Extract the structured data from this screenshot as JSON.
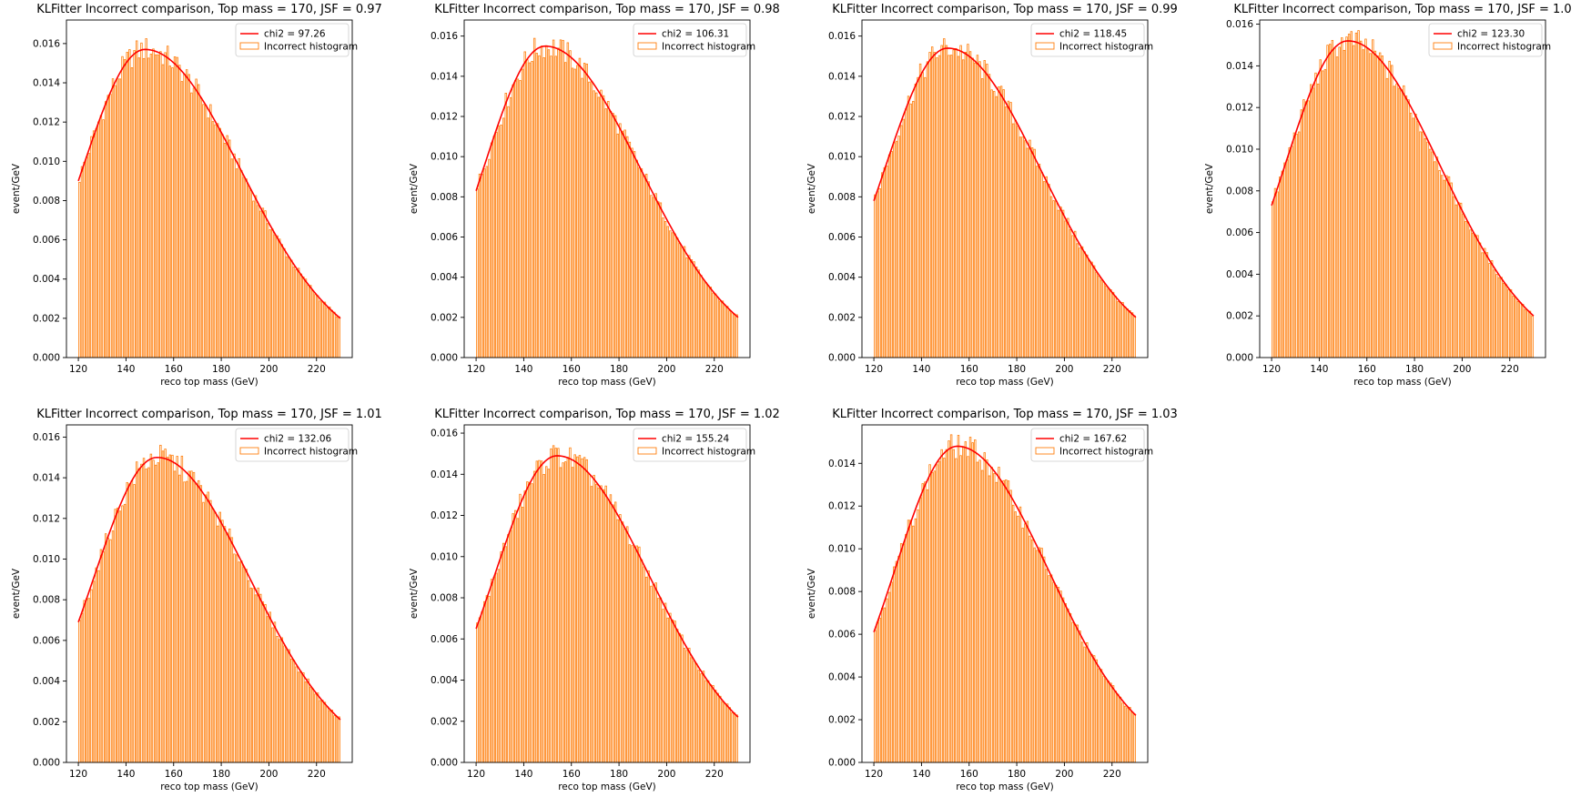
{
  "figure": {
    "hist_color": "#ff7f0e",
    "fit_color": "#ff0000",
    "legend_position": "upper right",
    "layout": "2 rows x 4 columns, 7 panels"
  },
  "chart_data": [
    {
      "type": "bar",
      "title": "KLFitter Incorrect comparison, Top mass = 170, JSF = 0.97",
      "xlabel": "reco top mass (GeV)",
      "ylabel": "event/GeV",
      "xlim": [
        115,
        235
      ],
      "ylim": [
        0,
        0.0172
      ],
      "xticks": [
        120,
        140,
        160,
        180,
        200,
        220
      ],
      "xtick_labels": [
        "120",
        "140",
        "160",
        "180",
        "200",
        "220"
      ],
      "yticks": [
        0,
        0.002,
        0.004,
        0.006,
        0.008,
        0.01,
        0.012,
        0.014,
        0.016
      ],
      "ytick_labels": [
        "0.000",
        "0.002",
        "0.004",
        "0.006",
        "0.008",
        "0.010",
        "0.012",
        "0.014",
        "0.016"
      ],
      "bin_edges": [
        120,
        230
      ],
      "n_bins": 110,
      "fit_label": "chi2 = 97.26",
      "hist_label": "Incorrect histogram",
      "peak": 148,
      "peak_value": 0.0157,
      "start_value": 0.009,
      "end_value": 0.002
    },
    {
      "type": "bar",
      "title": "KLFitter Incorrect comparison, Top mass = 170, JSF = 0.98",
      "xlabel": "reco top mass (GeV)",
      "ylabel": "event/GeV",
      "xlim": [
        115,
        235
      ],
      "ylim": [
        0,
        0.0168
      ],
      "xticks": [
        120,
        140,
        160,
        180,
        200,
        220
      ],
      "xtick_labels": [
        "120",
        "140",
        "160",
        "180",
        "200",
        "220"
      ],
      "yticks": [
        0,
        0.002,
        0.004,
        0.006,
        0.008,
        0.01,
        0.012,
        0.014,
        0.016
      ],
      "ytick_labels": [
        "0.000",
        "0.002",
        "0.004",
        "0.006",
        "0.008",
        "0.010",
        "0.012",
        "0.014",
        "0.016"
      ],
      "bin_edges": [
        120,
        230
      ],
      "n_bins": 110,
      "fit_label": "chi2 = 106.31",
      "hist_label": "Incorrect histogram",
      "peak": 149,
      "peak_value": 0.0155,
      "start_value": 0.0083,
      "end_value": 0.002
    },
    {
      "type": "bar",
      "title": "KLFitter Incorrect comparison, Top mass = 170, JSF = 0.99",
      "xlabel": "reco top mass (GeV)",
      "ylabel": "event/GeV",
      "xlim": [
        115,
        235
      ],
      "ylim": [
        0,
        0.0168
      ],
      "xticks": [
        120,
        140,
        160,
        180,
        200,
        220
      ],
      "xtick_labels": [
        "120",
        "140",
        "160",
        "180",
        "200",
        "220"
      ],
      "yticks": [
        0,
        0.002,
        0.004,
        0.006,
        0.008,
        0.01,
        0.012,
        0.014,
        0.016
      ],
      "ytick_labels": [
        "0.000",
        "0.002",
        "0.004",
        "0.006",
        "0.008",
        "0.010",
        "0.012",
        "0.014",
        "0.016"
      ],
      "bin_edges": [
        120,
        230
      ],
      "n_bins": 110,
      "fit_label": "chi2 = 118.45",
      "hist_label": "Incorrect histogram",
      "peak": 151,
      "peak_value": 0.0154,
      "start_value": 0.0078,
      "end_value": 0.002
    },
    {
      "type": "bar",
      "title": "KLFitter Incorrect comparison, Top mass = 170, JSF = 1.0",
      "xlabel": "reco top mass (GeV)",
      "ylabel": "event/GeV",
      "xlim": [
        115,
        235
      ],
      "ylim": [
        0,
        0.0162
      ],
      "xticks": [
        120,
        140,
        160,
        180,
        200,
        220
      ],
      "xtick_labels": [
        "120",
        "140",
        "160",
        "180",
        "200",
        "220"
      ],
      "yticks": [
        0,
        0.002,
        0.004,
        0.006,
        0.008,
        0.01,
        0.012,
        0.014,
        0.016
      ],
      "ytick_labels": [
        "0.000",
        "0.002",
        "0.004",
        "0.006",
        "0.008",
        "0.010",
        "0.012",
        "0.014",
        "0.016"
      ],
      "bin_edges": [
        120,
        230
      ],
      "n_bins": 110,
      "fit_label": "chi2 = 123.30",
      "hist_label": "Incorrect histogram",
      "peak": 152,
      "peak_value": 0.0152,
      "start_value": 0.0073,
      "end_value": 0.002
    },
    {
      "type": "bar",
      "title": "KLFitter Incorrect comparison, Top mass = 170, JSF = 1.01",
      "xlabel": "reco top mass (GeV)",
      "ylabel": "event/GeV",
      "xlim": [
        115,
        235
      ],
      "ylim": [
        0,
        0.0166
      ],
      "xticks": [
        120,
        140,
        160,
        180,
        200,
        220
      ],
      "xtick_labels": [
        "120",
        "140",
        "160",
        "180",
        "200",
        "220"
      ],
      "yticks": [
        0,
        0.002,
        0.004,
        0.006,
        0.008,
        0.01,
        0.012,
        0.014,
        0.016
      ],
      "ytick_labels": [
        "0.000",
        "0.002",
        "0.004",
        "0.006",
        "0.008",
        "0.010",
        "0.012",
        "0.014",
        "0.016"
      ],
      "bin_edges": [
        120,
        230
      ],
      "n_bins": 110,
      "fit_label": "chi2 = 132.06",
      "hist_label": "Incorrect histogram",
      "peak": 153,
      "peak_value": 0.015,
      "start_value": 0.0069,
      "end_value": 0.0021
    },
    {
      "type": "bar",
      "title": "KLFitter Incorrect comparison, Top mass = 170, JSF = 1.02",
      "xlabel": "reco top mass (GeV)",
      "ylabel": "event/GeV",
      "xlim": [
        115,
        235
      ],
      "ylim": [
        0,
        0.0164
      ],
      "xticks": [
        120,
        140,
        160,
        180,
        200,
        220
      ],
      "xtick_labels": [
        "120",
        "140",
        "160",
        "180",
        "200",
        "220"
      ],
      "yticks": [
        0,
        0.002,
        0.004,
        0.006,
        0.008,
        0.01,
        0.012,
        0.014,
        0.016
      ],
      "ytick_labels": [
        "0.000",
        "0.002",
        "0.004",
        "0.006",
        "0.008",
        "0.010",
        "0.012",
        "0.014",
        "0.016"
      ],
      "bin_edges": [
        120,
        230
      ],
      "n_bins": 110,
      "fit_label": "chi2 = 155.24",
      "hist_label": "Incorrect histogram",
      "peak": 154,
      "peak_value": 0.0149,
      "start_value": 0.0065,
      "end_value": 0.0022
    },
    {
      "type": "bar",
      "title": "KLFitter Incorrect comparison, Top mass = 170, JSF = 1.03",
      "xlabel": "reco top mass (GeV)",
      "ylabel": "event/GeV",
      "xlim": [
        115,
        235
      ],
      "ylim": [
        0,
        0.0158
      ],
      "xticks": [
        120,
        140,
        160,
        180,
        200,
        220
      ],
      "xtick_labels": [
        "120",
        "140",
        "160",
        "180",
        "200",
        "220"
      ],
      "yticks": [
        0,
        0.002,
        0.004,
        0.006,
        0.008,
        0.01,
        0.012,
        0.014
      ],
      "ytick_labels": [
        "0.000",
        "0.002",
        "0.004",
        "0.006",
        "0.008",
        "0.010",
        "0.012",
        "0.014"
      ],
      "bin_edges": [
        120,
        230
      ],
      "n_bins": 110,
      "fit_label": "chi2 = 167.62",
      "hist_label": "Incorrect histogram",
      "peak": 155,
      "peak_value": 0.0148,
      "start_value": 0.0061,
      "end_value": 0.0022
    }
  ]
}
